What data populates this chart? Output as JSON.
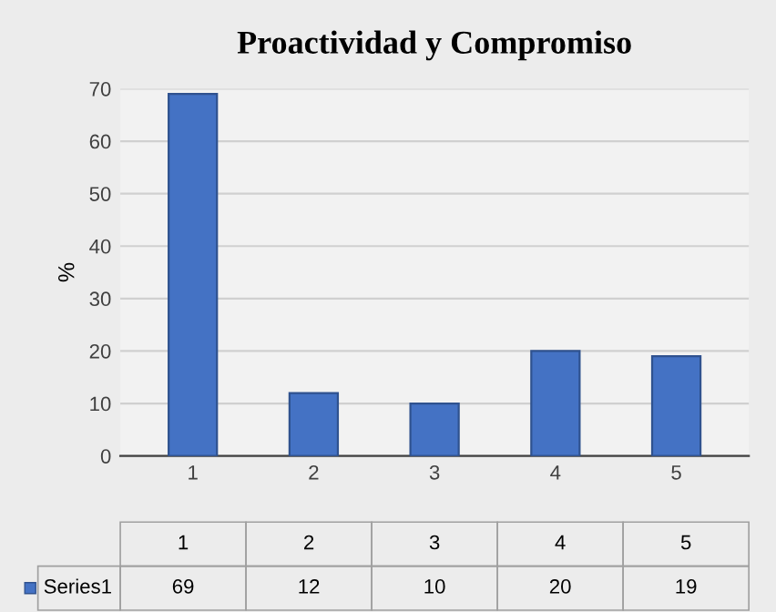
{
  "chart_data": {
    "type": "bar",
    "title": "Proactividad y Compromiso",
    "ylabel": "%",
    "categories": [
      "1",
      "2",
      "3",
      "4",
      "5"
    ],
    "series": [
      {
        "name": "Series1",
        "color": "#4472c4",
        "values": [
          69,
          12,
          10,
          20,
          19
        ]
      }
    ],
    "ylim": [
      0,
      70
    ],
    "yticks": [
      0,
      10,
      20,
      30,
      40,
      50,
      60,
      70
    ],
    "grid": "y",
    "data_labels": true
  }
}
